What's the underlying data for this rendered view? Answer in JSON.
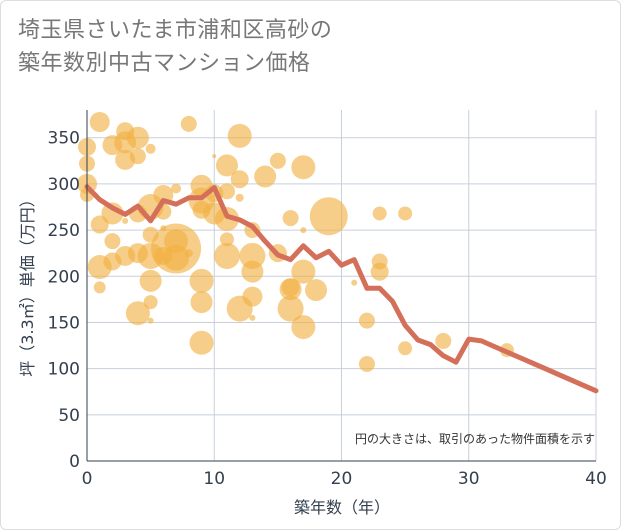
{
  "title": {
    "line1": "埼玉県さいたま市浦和区高砂の",
    "line2": "築年数別中古マンション価格"
  },
  "colors": {
    "bubble": "#f0b040",
    "line": "#d4705a",
    "grid": "#c8d0dc",
    "axis_text": "#333f4f"
  },
  "chart_data": {
    "type": "scatter",
    "title": "埼玉県さいたま市浦和区高砂の築年数別中古マンション価格",
    "xlabel": "築年数（年）",
    "ylabel": "坪（3.3㎡）単価（万円）",
    "note": "円の大きさは、取引のあった物件面積を示す",
    "xlim": [
      0,
      40
    ],
    "ylim": [
      0,
      380
    ],
    "x_ticks": [
      0,
      10,
      20,
      30,
      40
    ],
    "y_ticks": [
      0,
      50,
      100,
      150,
      200,
      250,
      300,
      350
    ],
    "grid": true,
    "series": [
      {
        "kind": "bubble",
        "points": [
          {
            "x": 0,
            "y": 340,
            "r": 9
          },
          {
            "x": 0,
            "y": 322,
            "r": 8
          },
          {
            "x": 0,
            "y": 300,
            "r": 10
          },
          {
            "x": 0,
            "y": 288,
            "r": 7
          },
          {
            "x": 1,
            "y": 367,
            "r": 10
          },
          {
            "x": 1,
            "y": 256,
            "r": 9
          },
          {
            "x": 1,
            "y": 210,
            "r": 12
          },
          {
            "x": 1,
            "y": 188,
            "r": 6
          },
          {
            "x": 2,
            "y": 342,
            "r": 10
          },
          {
            "x": 2,
            "y": 268,
            "r": 11
          },
          {
            "x": 2,
            "y": 238,
            "r": 8
          },
          {
            "x": 2,
            "y": 216,
            "r": 9
          },
          {
            "x": 3,
            "y": 357,
            "r": 9
          },
          {
            "x": 3,
            "y": 345,
            "r": 11
          },
          {
            "x": 3,
            "y": 326,
            "r": 10
          },
          {
            "x": 3,
            "y": 222,
            "r": 10
          },
          {
            "x": 3,
            "y": 260,
            "r": 3
          },
          {
            "x": 4,
            "y": 350,
            "r": 11
          },
          {
            "x": 4,
            "y": 330,
            "r": 8
          },
          {
            "x": 4,
            "y": 268,
            "r": 9
          },
          {
            "x": 4,
            "y": 225,
            "r": 10
          },
          {
            "x": 4,
            "y": 160,
            "r": 12
          },
          {
            "x": 5,
            "y": 338,
            "r": 5
          },
          {
            "x": 5,
            "y": 275,
            "r": 13
          },
          {
            "x": 5,
            "y": 245,
            "r": 8
          },
          {
            "x": 5,
            "y": 222,
            "r": 13
          },
          {
            "x": 5,
            "y": 195,
            "r": 11
          },
          {
            "x": 5,
            "y": 172,
            "r": 7
          },
          {
            "x": 5,
            "y": 152,
            "r": 3
          },
          {
            "x": 6,
            "y": 288,
            "r": 10
          },
          {
            "x": 6,
            "y": 270,
            "r": 8
          },
          {
            "x": 6,
            "y": 222,
            "r": 9
          },
          {
            "x": 6,
            "y": 252,
            "r": 3
          },
          {
            "x": 7,
            "y": 295,
            "r": 5
          },
          {
            "x": 7,
            "y": 230,
            "r": 25
          },
          {
            "x": 7,
            "y": 238,
            "r": 12
          },
          {
            "x": 7,
            "y": 220,
            "r": 13
          },
          {
            "x": 8,
            "y": 365,
            "r": 8
          },
          {
            "x": 8,
            "y": 225,
            "r": 4
          },
          {
            "x": 9,
            "y": 298,
            "r": 11
          },
          {
            "x": 9,
            "y": 282,
            "r": 13
          },
          {
            "x": 9,
            "y": 272,
            "r": 9
          },
          {
            "x": 9,
            "y": 195,
            "r": 12
          },
          {
            "x": 9,
            "y": 172,
            "r": 11
          },
          {
            "x": 9,
            "y": 128,
            "r": 12
          },
          {
            "x": 10,
            "y": 290,
            "r": 9
          },
          {
            "x": 10,
            "y": 268,
            "r": 11
          },
          {
            "x": 10,
            "y": 330,
            "r": 2
          },
          {
            "x": 11,
            "y": 320,
            "r": 11
          },
          {
            "x": 11,
            "y": 292,
            "r": 8
          },
          {
            "x": 11,
            "y": 262,
            "r": 12
          },
          {
            "x": 11,
            "y": 240,
            "r": 7
          },
          {
            "x": 11,
            "y": 222,
            "r": 13
          },
          {
            "x": 12,
            "y": 352,
            "r": 12
          },
          {
            "x": 12,
            "y": 305,
            "r": 9
          },
          {
            "x": 12,
            "y": 285,
            "r": 4
          },
          {
            "x": 12,
            "y": 165,
            "r": 13
          },
          {
            "x": 13,
            "y": 250,
            "r": 8
          },
          {
            "x": 13,
            "y": 222,
            "r": 13
          },
          {
            "x": 13,
            "y": 205,
            "r": 11
          },
          {
            "x": 13,
            "y": 178,
            "r": 10
          },
          {
            "x": 13,
            "y": 155,
            "r": 3
          },
          {
            "x": 14,
            "y": 308,
            "r": 11
          },
          {
            "x": 15,
            "y": 325,
            "r": 8
          },
          {
            "x": 15,
            "y": 225,
            "r": 9
          },
          {
            "x": 16,
            "y": 263,
            "r": 8
          },
          {
            "x": 16,
            "y": 188,
            "r": 9
          },
          {
            "x": 16,
            "y": 186,
            "r": 11
          },
          {
            "x": 16,
            "y": 165,
            "r": 13
          },
          {
            "x": 17,
            "y": 318,
            "r": 12
          },
          {
            "x": 17,
            "y": 250,
            "r": 3
          },
          {
            "x": 17,
            "y": 205,
            "r": 12
          },
          {
            "x": 17,
            "y": 145,
            "r": 12
          },
          {
            "x": 18,
            "y": 185,
            "r": 11
          },
          {
            "x": 19,
            "y": 265,
            "r": 19
          },
          {
            "x": 21,
            "y": 193,
            "r": 3
          },
          {
            "x": 22,
            "y": 152,
            "r": 8
          },
          {
            "x": 22,
            "y": 105,
            "r": 8
          },
          {
            "x": 23,
            "y": 268,
            "r": 7
          },
          {
            "x": 23,
            "y": 216,
            "r": 8
          },
          {
            "x": 23,
            "y": 205,
            "r": 9
          },
          {
            "x": 25,
            "y": 268,
            "r": 7
          },
          {
            "x": 25,
            "y": 122,
            "r": 7
          },
          {
            "x": 28,
            "y": 130,
            "r": 8
          },
          {
            "x": 33,
            "y": 120,
            "r": 7
          }
        ]
      },
      {
        "kind": "line",
        "x": [
          0,
          1,
          2,
          3,
          4,
          5,
          6,
          7,
          8,
          9,
          10,
          11,
          12,
          13,
          14,
          15,
          16,
          17,
          18,
          19,
          20,
          21,
          22,
          23,
          24,
          25,
          26,
          27,
          28,
          29,
          30,
          31,
          32,
          33,
          34,
          35,
          36,
          37,
          38,
          39,
          40
        ],
        "y": [
          297,
          283,
          274,
          267,
          276,
          260,
          282,
          278,
          285,
          285,
          296,
          265,
          261,
          254,
          238,
          223,
          218,
          233,
          220,
          227,
          212,
          218,
          187,
          187,
          173,
          147,
          131,
          126,
          114,
          107,
          132,
          130,
          124,
          118,
          112,
          106,
          100,
          94,
          88,
          82,
          76
        ]
      }
    ]
  }
}
